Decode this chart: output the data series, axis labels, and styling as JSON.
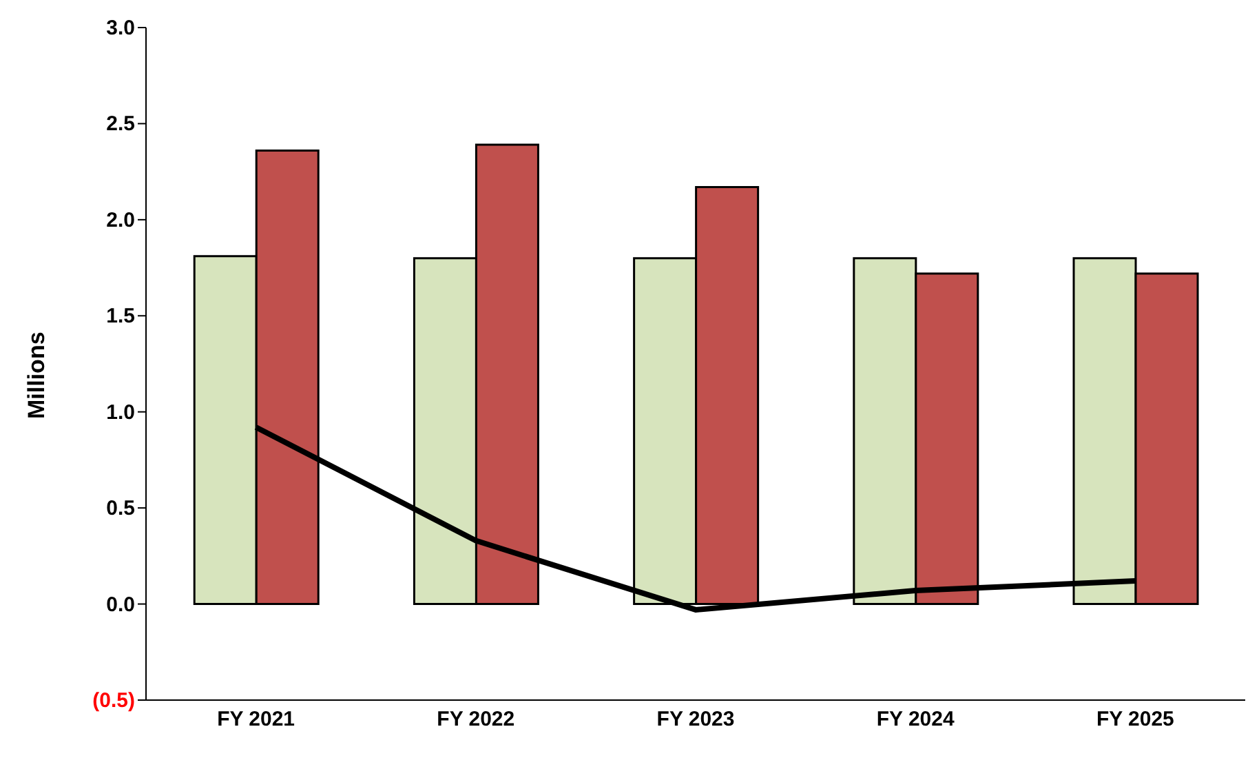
{
  "chart_data": {
    "type": "bar",
    "ylabel": "Millions",
    "categories": [
      "FY 2021",
      "FY 2022",
      "FY 2023",
      "FY 2024",
      "FY 2025"
    ],
    "series": [
      {
        "color": "#d7e4bd",
        "values": [
          1.81,
          1.8,
          1.8,
          1.8,
          1.8
        ]
      },
      {
        "color": "#c0504d",
        "values": [
          2.36,
          2.39,
          2.17,
          1.72,
          1.72
        ]
      },
      {
        "type": "line",
        "color": "#000000",
        "values": [
          0.92,
          0.33,
          -0.03,
          0.07,
          0.12
        ]
      }
    ],
    "ylim": [
      -0.5,
      3
    ],
    "yticks": [
      {
        "value": -0.5,
        "label": "(0.5)"
      },
      {
        "value": 0,
        "label": "0.0"
      },
      {
        "value": 0.5,
        "label": "0.5"
      },
      {
        "value": 1,
        "label": "1.0"
      },
      {
        "value": 1.5,
        "label": "1.5"
      },
      {
        "value": 2,
        "label": "2.0"
      },
      {
        "value": 2.5,
        "label": "2.5"
      },
      {
        "value": 3,
        "label": "3.0"
      }
    ],
    "grid": false,
    "legend": false,
    "marker": "none"
  }
}
